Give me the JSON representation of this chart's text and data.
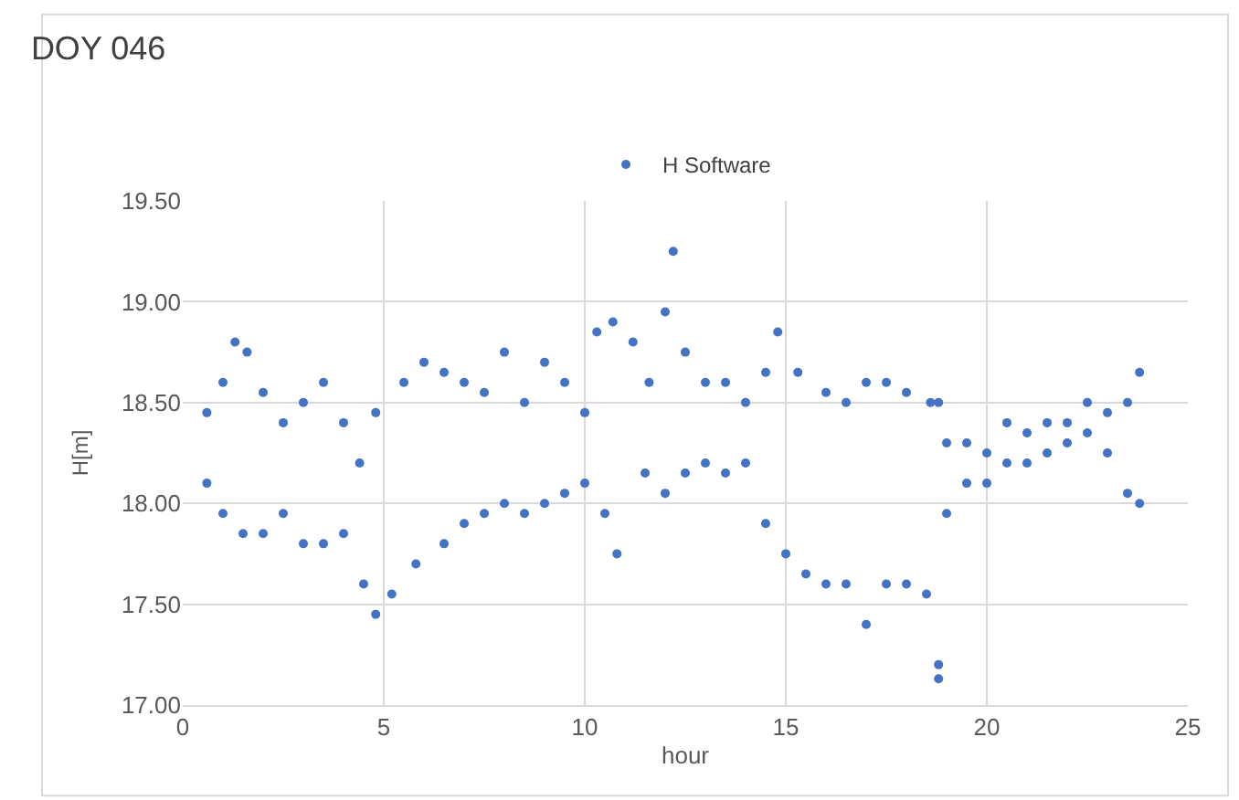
{
  "chart_data": {
    "type": "scatter",
    "title": "DOY 046",
    "xlabel": "hour",
    "ylabel": "H[m]",
    "xlim": [
      0,
      25
    ],
    "xticks": [
      0,
      5,
      10,
      15,
      20,
      25
    ],
    "ylim": [
      17.0,
      19.5
    ],
    "yticks": [
      {
        "value": 17.0,
        "label": "17.00"
      },
      {
        "value": 17.5,
        "label": "17.50"
      },
      {
        "value": 18.0,
        "label": "18.00"
      },
      {
        "value": 18.5,
        "label": "18.50"
      },
      {
        "value": 19.0,
        "label": "19.00"
      },
      {
        "value": 19.5,
        "label": "19.50"
      }
    ],
    "grid": true,
    "legend": "top",
    "marker": "circle",
    "series": [
      {
        "name": "H Software",
        "color": "#4472c4",
        "x": [
          0.6,
          1.0,
          1.3,
          1.6,
          2.0,
          2.5,
          3.0,
          3.5,
          4.0,
          4.4,
          4.8,
          5.5,
          6.0,
          6.5,
          7.0,
          7.5,
          8.0,
          8.5,
          9.0,
          9.5,
          10.0,
          10.3,
          10.7,
          11.2,
          11.6,
          12.0,
          12.2,
          12.5,
          13.0,
          13.5,
          14.0,
          14.5,
          14.8,
          15.3,
          16.0,
          16.5,
          17.0,
          17.5,
          18.0,
          18.6,
          19.0,
          19.5,
          20.0,
          20.5,
          21.0,
          21.5,
          22.0,
          22.5,
          23.0,
          23.5,
          23.8,
          0.6,
          1.0,
          1.5,
          2.0,
          2.5,
          3.0,
          3.5,
          4.0,
          4.5,
          4.8,
          5.2,
          5.8,
          6.5,
          7.0,
          7.5,
          8.0,
          8.5,
          9.0,
          9.5,
          10.0,
          10.5,
          10.8,
          11.5,
          12.0,
          12.5,
          13.0,
          13.5,
          14.0,
          14.5,
          15.0,
          15.5,
          16.0,
          16.5,
          17.0,
          17.5,
          18.0,
          18.5,
          18.8,
          18.8,
          18.8,
          19.0,
          19.5,
          20.0,
          20.5,
          21.0,
          21.5,
          22.0,
          22.5,
          23.0,
          23.5,
          23.8
        ],
        "values": [
          18.45,
          18.6,
          18.8,
          18.75,
          18.55,
          18.4,
          18.5,
          18.6,
          18.4,
          18.2,
          18.45,
          18.6,
          18.7,
          18.65,
          18.6,
          18.55,
          18.75,
          18.5,
          18.7,
          18.6,
          18.45,
          18.85,
          18.9,
          18.8,
          18.6,
          18.95,
          19.25,
          18.75,
          18.6,
          18.6,
          18.5,
          18.65,
          18.85,
          18.65,
          18.55,
          18.5,
          18.6,
          18.6,
          18.55,
          18.5,
          18.3,
          18.3,
          18.25,
          18.4,
          18.35,
          18.4,
          18.4,
          18.5,
          18.45,
          18.5,
          18.65,
          18.1,
          17.95,
          17.85,
          17.85,
          17.95,
          17.8,
          17.8,
          17.85,
          17.6,
          17.45,
          17.55,
          17.7,
          17.8,
          17.9,
          17.95,
          18.0,
          17.95,
          18.0,
          18.05,
          18.1,
          17.95,
          17.75,
          18.15,
          18.05,
          18.15,
          18.2,
          18.15,
          18.2,
          17.9,
          17.75,
          17.65,
          17.6,
          17.6,
          17.4,
          17.6,
          17.6,
          17.55,
          17.2,
          17.13,
          18.5,
          17.95,
          18.1,
          18.1,
          18.2,
          18.2,
          18.25,
          18.3,
          18.35,
          18.25,
          18.05,
          18.0
        ]
      }
    ]
  }
}
